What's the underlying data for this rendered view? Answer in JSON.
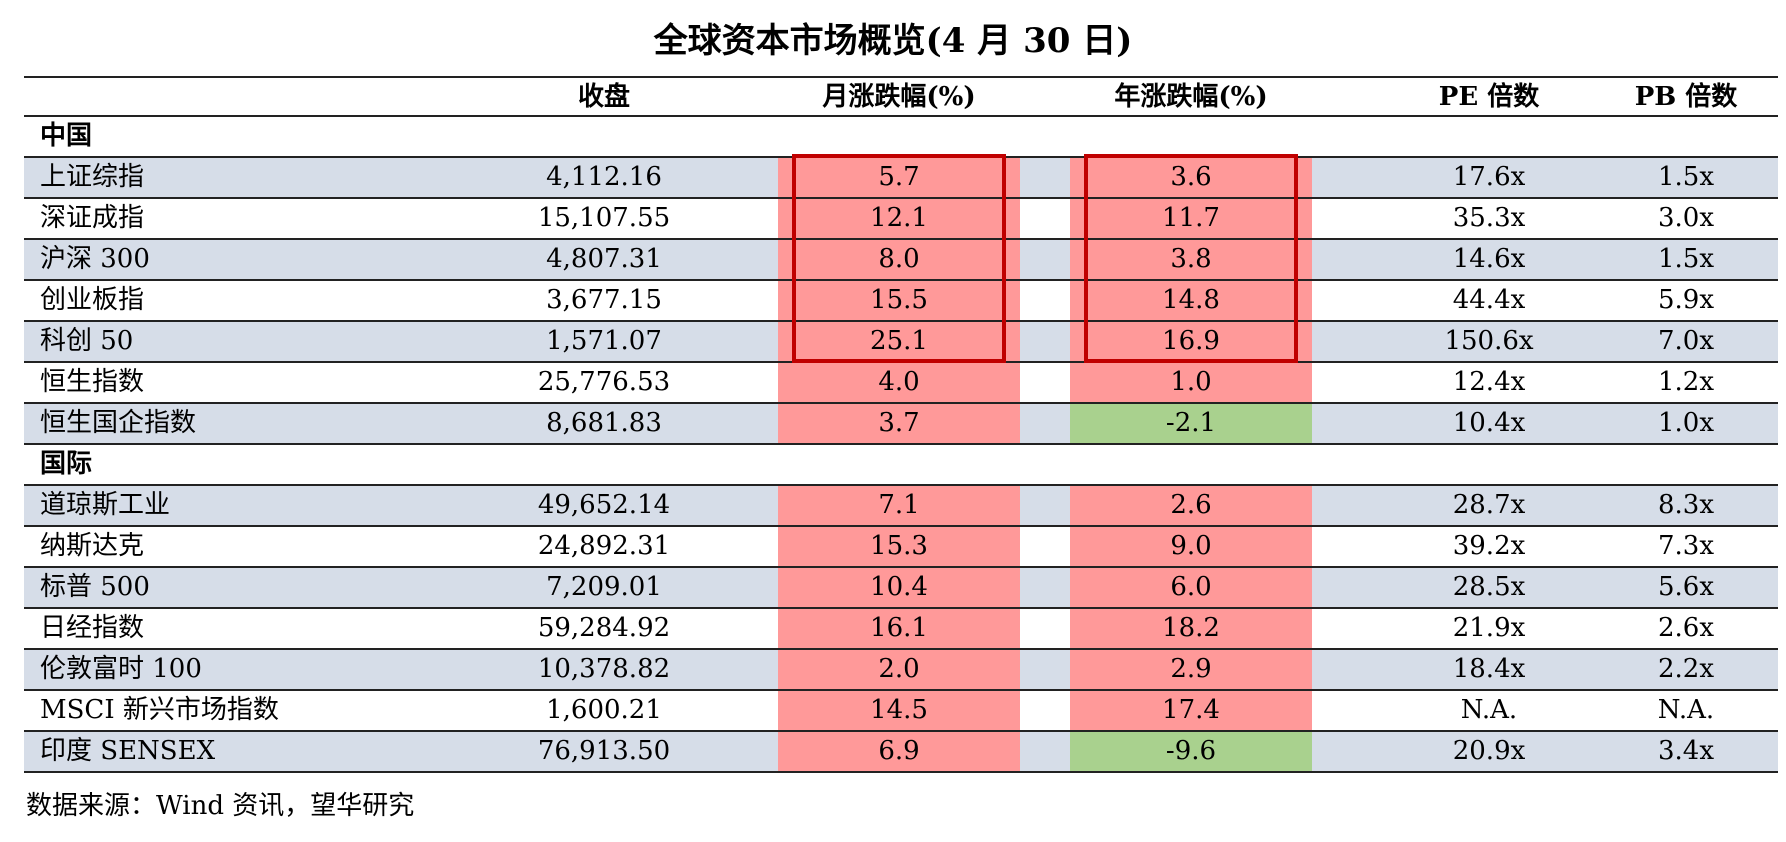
{
  "title": "全球资本市场概览(4 月 30 日)",
  "headers": {
    "close": "收盘",
    "monthly": "月涨跌幅(%)",
    "yearly": "年涨跌幅(%)",
    "pe": "PE 倍数",
    "pb": "PB 倍数"
  },
  "sections": [
    {
      "label": "中国",
      "rows": [
        {
          "name": "上证综指",
          "close": "4,112.16",
          "monthly": "5.7",
          "yearly": "3.6",
          "pe": "17.6x",
          "pb": "1.5x"
        },
        {
          "name": "深证成指",
          "close": "15,107.55",
          "monthly": "12.1",
          "yearly": "11.7",
          "pe": "35.3x",
          "pb": "3.0x"
        },
        {
          "name": "沪深 300",
          "close": "4,807.31",
          "monthly": "8.0",
          "yearly": "3.8",
          "pe": "14.6x",
          "pb": "1.5x"
        },
        {
          "name": "创业板指",
          "close": "3,677.15",
          "monthly": "15.5",
          "yearly": "14.8",
          "pe": "44.4x",
          "pb": "5.9x"
        },
        {
          "name": "科创 50",
          "close": "1,571.07",
          "monthly": "25.1",
          "yearly": "16.9",
          "pe": "150.6x",
          "pb": "7.0x"
        },
        {
          "name": "恒生指数",
          "close": "25,776.53",
          "monthly": "4.0",
          "yearly": "1.0",
          "pe": "12.4x",
          "pb": "1.2x"
        },
        {
          "name": "恒生国企指数",
          "close": "8,681.83",
          "monthly": "3.7",
          "yearly": "-2.1",
          "pe": "10.4x",
          "pb": "1.0x"
        }
      ]
    },
    {
      "label": "国际",
      "rows": [
        {
          "name": "道琼斯工业",
          "close": "49,652.14",
          "monthly": "7.1",
          "yearly": "2.6",
          "pe": "28.7x",
          "pb": "8.3x"
        },
        {
          "name": "纳斯达克",
          "close": "24,892.31",
          "monthly": "15.3",
          "yearly": "9.0",
          "pe": "39.2x",
          "pb": "7.3x"
        },
        {
          "name": "标普 500",
          "close": "7,209.01",
          "monthly": "10.4",
          "yearly": "6.0",
          "pe": "28.5x",
          "pb": "5.6x"
        },
        {
          "name": "日经指数",
          "close": "59,284.92",
          "monthly": "16.1",
          "yearly": "18.2",
          "pe": "21.9x",
          "pb": "2.6x"
        },
        {
          "name": "伦敦富时 100",
          "close": "10,378.82",
          "monthly": "2.0",
          "yearly": "2.9",
          "pe": "18.4x",
          "pb": "2.2x"
        },
        {
          "name": "MSCI 新兴市场指数",
          "close": "1,600.21",
          "monthly": "14.5",
          "yearly": "17.4",
          "pe": "N.A.",
          "pb": "N.A."
        },
        {
          "name": "印度 SENSEX",
          "close": "76,913.50",
          "monthly": "6.9",
          "yearly": "-9.6",
          "pe": "20.9x",
          "pb": "3.4x"
        }
      ]
    }
  ],
  "colors": {
    "positive": "#ff9999",
    "negative": "#a9d18e",
    "row_shade": "#d6dde8",
    "highlight_border": "#c00000"
  },
  "footer": "数据来源：Wind 资讯，望华研究"
}
